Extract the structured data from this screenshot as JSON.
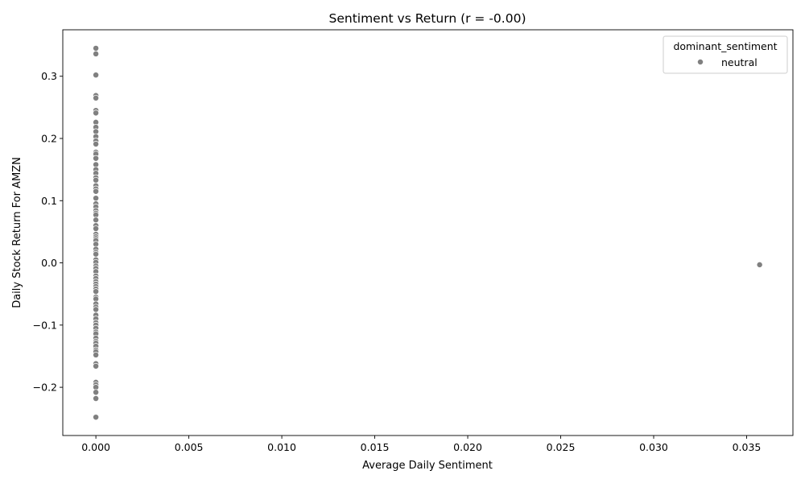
{
  "chart_data": {
    "type": "scatter",
    "title": "Sentiment vs Return (r = -0.00)",
    "xlabel": "Average Daily Sentiment",
    "ylabel": "Daily Stock Return For AMZN",
    "xlim": [
      -0.00178,
      0.03749
    ],
    "ylim": [
      -0.2775,
      0.3747
    ],
    "xticks": [
      0.0,
      0.005,
      0.01,
      0.015,
      0.02,
      0.025,
      0.03,
      0.035
    ],
    "xtick_labels": [
      "0.000",
      "0.005",
      "0.010",
      "0.015",
      "0.020",
      "0.025",
      "0.030",
      "0.035"
    ],
    "yticks": [
      -0.2,
      -0.1,
      0.0,
      0.1,
      0.2,
      0.3
    ],
    "ytick_labels": [
      "−0.2",
      "−0.1",
      "0.0",
      "0.1",
      "0.2",
      "0.3"
    ],
    "grid": false,
    "legend": {
      "title": "dominant_sentiment",
      "placement": "top-right",
      "entries": [
        {
          "label": "neutral",
          "color": "#808080"
        }
      ]
    },
    "series": [
      {
        "name": "neutral",
        "color": "#808080",
        "points": [
          [
            0,
            0.345
          ],
          [
            0,
            0.336
          ],
          [
            0,
            0.302
          ],
          [
            0,
            0.269
          ],
          [
            0,
            0.265
          ],
          [
            0,
            0.245
          ],
          [
            0,
            0.241
          ],
          [
            0,
            0.226
          ],
          [
            0,
            0.218
          ],
          [
            0,
            0.211
          ],
          [
            0,
            0.203
          ],
          [
            0,
            0.196
          ],
          [
            0,
            0.191
          ],
          [
            0,
            0.178
          ],
          [
            0,
            0.175
          ],
          [
            0,
            0.168
          ],
          [
            0,
            0.158
          ],
          [
            0,
            0.15
          ],
          [
            0,
            0.144
          ],
          [
            0,
            0.137
          ],
          [
            0,
            0.133
          ],
          [
            0,
            0.124
          ],
          [
            0,
            0.119
          ],
          [
            0,
            0.115
          ],
          [
            0,
            0.104
          ],
          [
            0,
            0.095
          ],
          [
            0,
            0.09
          ],
          [
            0,
            0.084
          ],
          [
            0,
            0.08
          ],
          [
            0,
            0.077
          ],
          [
            0,
            0.069
          ],
          [
            0,
            0.06
          ],
          [
            0,
            0.055
          ],
          [
            0,
            0.046
          ],
          [
            0,
            0.042
          ],
          [
            0,
            0.039
          ],
          [
            0,
            0.036
          ],
          [
            0,
            0.03
          ],
          [
            0,
            0.022
          ],
          [
            0,
            0.017
          ],
          [
            0,
            0.014
          ],
          [
            0,
            0.005
          ],
          [
            0,
            0.001
          ],
          [
            0,
            -0.005
          ],
          [
            0,
            -0.009
          ],
          [
            0,
            -0.014
          ],
          [
            0,
            -0.021
          ],
          [
            0,
            -0.025
          ],
          [
            0,
            -0.03
          ],
          [
            0,
            -0.034
          ],
          [
            0,
            -0.038
          ],
          [
            0,
            -0.042
          ],
          [
            0,
            -0.046
          ],
          [
            0,
            -0.055
          ],
          [
            0,
            -0.058
          ],
          [
            0,
            -0.066
          ],
          [
            0,
            -0.071
          ],
          [
            0,
            -0.075
          ],
          [
            0,
            -0.084
          ],
          [
            0,
            -0.09
          ],
          [
            0,
            -0.096
          ],
          [
            0,
            -0.1
          ],
          [
            0,
            -0.105
          ],
          [
            0,
            -0.111
          ],
          [
            0,
            -0.114
          ],
          [
            0,
            -0.121
          ],
          [
            0,
            -0.126
          ],
          [
            0,
            -0.129
          ],
          [
            0,
            -0.134
          ],
          [
            0,
            -0.14
          ],
          [
            0,
            -0.143
          ],
          [
            0,
            -0.148
          ],
          [
            0,
            -0.162
          ],
          [
            0,
            -0.166
          ],
          [
            0,
            -0.192
          ],
          [
            0,
            -0.196
          ],
          [
            0,
            -0.2
          ],
          [
            0,
            -0.208
          ],
          [
            0,
            -0.218
          ],
          [
            0,
            -0.248
          ],
          [
            0.0357,
            -0.003
          ]
        ]
      }
    ]
  }
}
